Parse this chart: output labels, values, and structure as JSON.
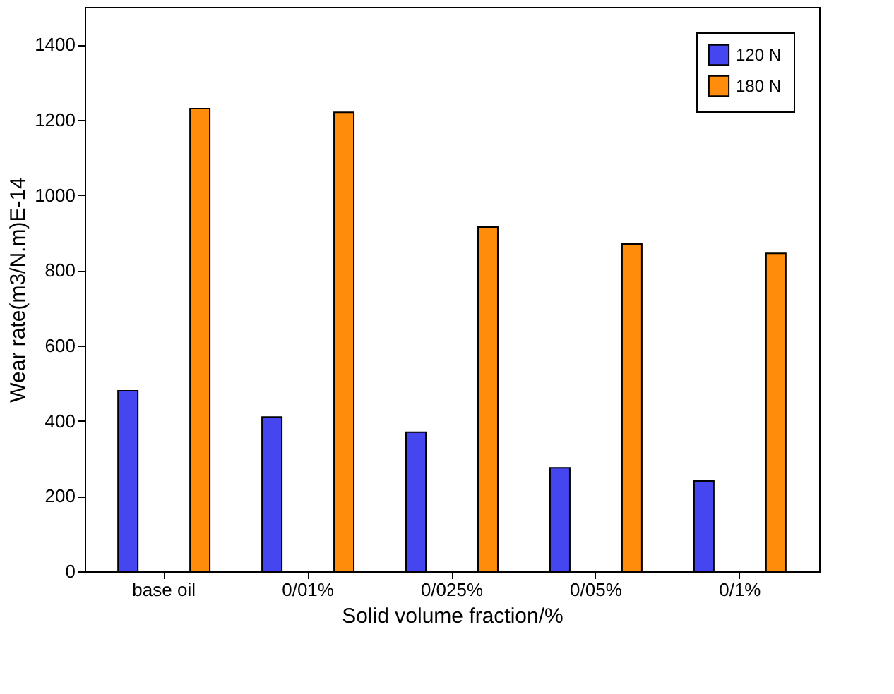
{
  "chart_data": {
    "type": "bar",
    "xlabel": "Solid volume fraction/%",
    "ylabel": "Wear rate(m3/N.m)E-14",
    "categories": [
      "base oil",
      "0/01%",
      "0/025%",
      "0/05%",
      "0/1%"
    ],
    "series": [
      {
        "name": "120 N",
        "color": "#4646f0",
        "values": [
          480,
          410,
          370,
          275,
          240
        ]
      },
      {
        "name": "180 N",
        "color": "#ff8c0a",
        "values": [
          1230,
          1220,
          915,
          870,
          845
        ]
      }
    ],
    "ylim": [
      0,
      1500
    ],
    "yticks": [
      0,
      200,
      400,
      600,
      800,
      1000,
      1200,
      1400
    ],
    "grid": false,
    "legend": "top right"
  }
}
